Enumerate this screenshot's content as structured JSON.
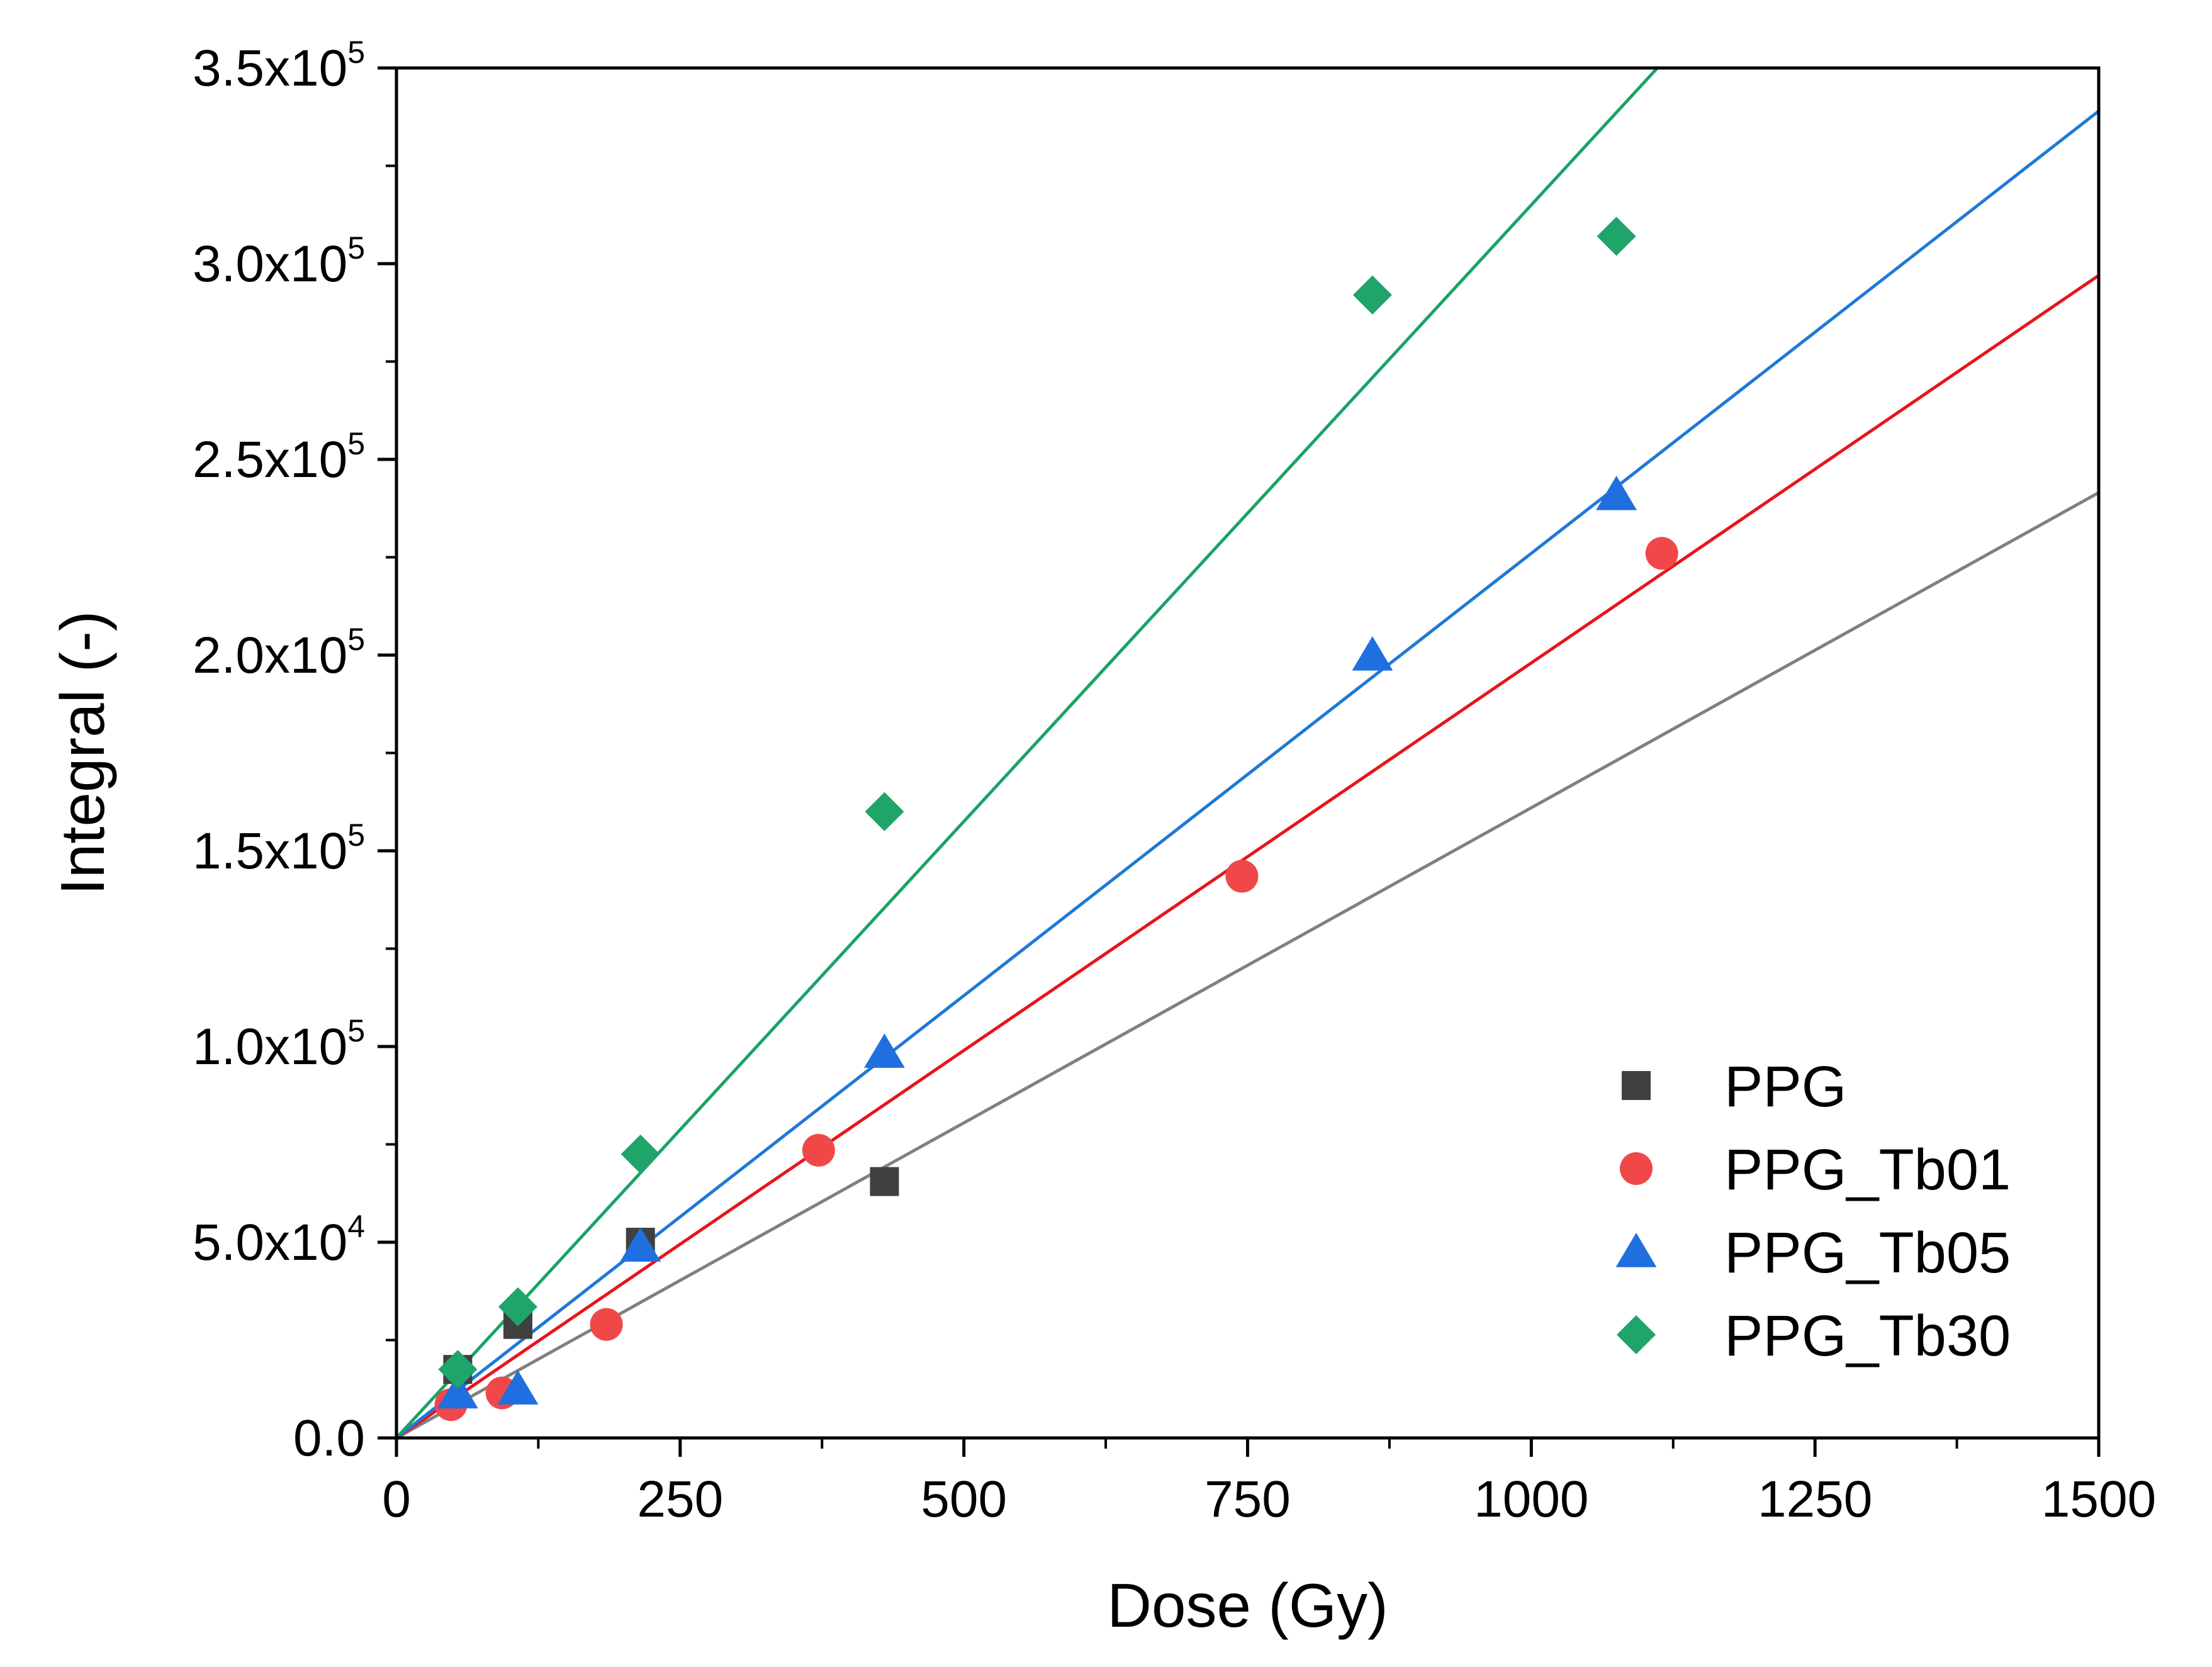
{
  "chart_data": {
    "type": "scatter",
    "title": "",
    "xlabel": "Dose (Gy)",
    "ylabel": "Integral (-)",
    "xlim": [
      0,
      1500
    ],
    "ylim": [
      0,
      350000
    ],
    "x_ticks": [
      0,
      250,
      500,
      750,
      1000,
      1250,
      1500
    ],
    "x_tick_labels": [
      "0",
      "250",
      "500",
      "750",
      "1000",
      "1250",
      "1500"
    ],
    "y_ticks": [
      0,
      50000,
      100000,
      150000,
      200000,
      250000,
      300000,
      350000
    ],
    "y_tick_labels": [
      {
        "mantissa": "0.0",
        "exponent": ""
      },
      {
        "mantissa": "5.0x10",
        "exponent": "4"
      },
      {
        "mantissa": "1.0x10",
        "exponent": "5"
      },
      {
        "mantissa": "1.5x10",
        "exponent": "5"
      },
      {
        "mantissa": "2.0x10",
        "exponent": "5"
      },
      {
        "mantissa": "2.5x10",
        "exponent": "5"
      },
      {
        "mantissa": "3.0x10",
        "exponent": "5"
      },
      {
        "mantissa": "3.5x10",
        "exponent": "5"
      }
    ],
    "grid": false,
    "legend_position": "bottom-right",
    "series": [
      {
        "name": "PPG",
        "marker": "square",
        "color": "#404040",
        "fit_color": "#808080",
        "fit_slope": 161,
        "x": [
          54,
          107,
          215,
          430
        ],
        "y": [
          17500,
          29000,
          50000,
          65500
        ]
      },
      {
        "name": "PPG_Tb01",
        "marker": "circle",
        "color": "#f04848",
        "fit_color": "#e8141c",
        "fit_slope": 198,
        "x": [
          48,
          93,
          185,
          372,
          745,
          1115
        ],
        "y": [
          8500,
          11500,
          29000,
          73500,
          143500,
          226000
        ]
      },
      {
        "name": "PPG_Tb05",
        "marker": "triangle",
        "color": "#1f6fe0",
        "fit_color": "#1f78d8",
        "fit_slope": 226,
        "x": [
          54,
          107,
          215,
          430,
          860,
          1075
        ],
        "y": [
          11500,
          12500,
          49000,
          98500,
          200000,
          241000
        ]
      },
      {
        "name": "PPG_Tb30",
        "marker": "diamond",
        "color": "#1fa46a",
        "fit_color": "#1aa366",
        "fit_slope": 315,
        "x": [
          54,
          107,
          215,
          430,
          860,
          1075
        ],
        "y": [
          17500,
          33500,
          72500,
          160000,
          292000,
          307000
        ]
      }
    ]
  }
}
